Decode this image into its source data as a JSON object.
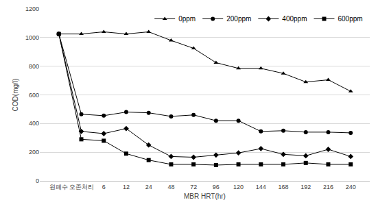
{
  "chart_data": {
    "type": "line",
    "x_label": "MBR HRT(hr)",
    "y_label": "COD(mg/l)",
    "categories": [
      "원폐수",
      "오존처리",
      "6",
      "12",
      "24",
      "48",
      "72",
      "96",
      "120",
      "144",
      "168",
      "192",
      "216",
      "240"
    ],
    "series": [
      {
        "name": "0ppm",
        "color": "#000000",
        "marker": "triangle-up",
        "values": [
          1025,
          1025,
          1040,
          1025,
          1040,
          980,
          925,
          825,
          785,
          785,
          750,
          690,
          705,
          625
        ]
      },
      {
        "name": "200ppm",
        "color": "#000000",
        "marker": "circle",
        "values": [
          1025,
          465,
          455,
          480,
          475,
          450,
          460,
          420,
          420,
          345,
          350,
          340,
          340,
          335
        ]
      },
      {
        "name": "400ppm",
        "color": "#000000",
        "marker": "diamond",
        "values": [
          1025,
          345,
          330,
          365,
          250,
          170,
          165,
          180,
          195,
          225,
          185,
          175,
          220,
          170
        ]
      },
      {
        "name": "600ppm",
        "color": "#000000",
        "marker": "square",
        "values": [
          1025,
          290,
          280,
          190,
          145,
          115,
          115,
          110,
          115,
          115,
          115,
          125,
          115,
          115
        ]
      }
    ],
    "ylim": [
      0,
      1200
    ],
    "yticks": [
      0,
      200,
      400,
      600,
      800,
      1000,
      1200
    ],
    "grid": true,
    "legend": "upper right"
  }
}
